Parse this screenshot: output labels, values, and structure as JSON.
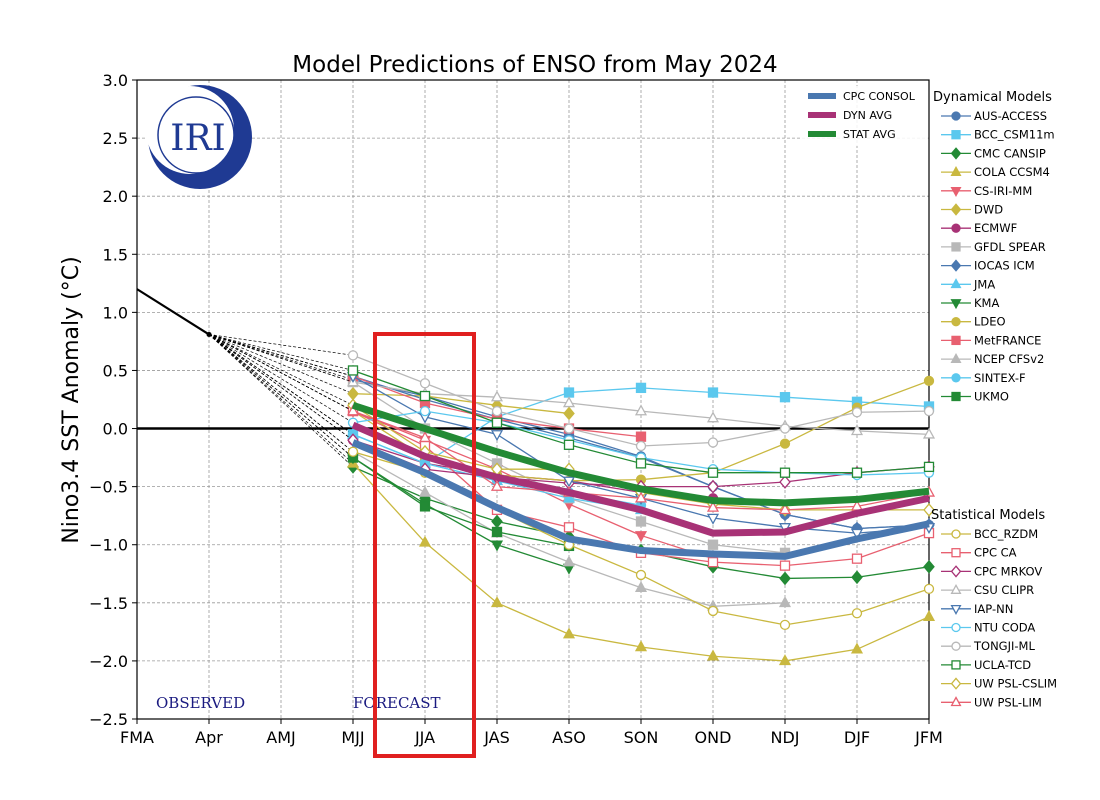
{
  "chart_data": {
    "type": "line",
    "title": "Model Predictions of ENSO from May 2024",
    "ylabel": "Nino3.4 SST Anomaly (°C)",
    "xlabel": "",
    "ylim": [
      -2.5,
      3.0
    ],
    "yticks": [
      "−2.5",
      "−2.0",
      "−1.5",
      "−1.0",
      "−0.5",
      "0.0",
      "0.5",
      "1.0",
      "1.5",
      "2.0",
      "2.5",
      "3.0"
    ],
    "categories": [
      "FMA",
      "Apr",
      "AMJ",
      "MJJ",
      "JJA",
      "JAS",
      "ASO",
      "SON",
      "OND",
      "NDJ",
      "DJF",
      "JFM"
    ],
    "grid": true,
    "annotations": {
      "observed": "OBSERVED",
      "forecast": "FORECAST",
      "logo": "IRI"
    },
    "highlight_box": {
      "category": "JJA",
      "color": "#e02020"
    },
    "observed": {
      "x": [
        "FMA",
        "Apr"
      ],
      "values": [
        1.2,
        0.81
      ]
    },
    "forecast_start": "MJJ",
    "averages_legend_position": "top-right",
    "averages": [
      {
        "name": "CPC CONSOL",
        "color": "#4a78b0",
        "values": [
          -0.12,
          -0.38,
          -0.68,
          -0.95,
          -1.05,
          -1.08,
          -1.1,
          -0.95,
          -0.82
        ]
      },
      {
        "name": "DYN AVG",
        "color": "#a83276",
        "values": [
          0.03,
          -0.24,
          -0.42,
          -0.55,
          -0.7,
          -0.9,
          -0.89,
          -0.73,
          -0.6
        ]
      },
      {
        "name": "STAT AVG",
        "color": "#238a35",
        "values": [
          0.2,
          0.0,
          -0.2,
          -0.38,
          -0.52,
          -0.62,
          -0.64,
          -0.61,
          -0.54
        ]
      }
    ],
    "dynamical_title": "Dynamical Models",
    "dynamical": [
      {
        "name": "AUS-ACCESS",
        "color": "#4a78b0",
        "marker": "circle",
        "filled": true,
        "values": [
          0.42,
          0.28,
          0.1,
          -0.05,
          -0.24,
          -0.5,
          -0.74,
          -0.86,
          -0.83
        ]
      },
      {
        "name": "BCC_CSM11m",
        "color": "#5bc8ee",
        "marker": "square",
        "filled": true,
        "values": [
          -0.05,
          -0.3,
          0.1,
          0.31,
          0.35,
          0.31,
          0.27,
          0.23,
          0.19
        ]
      },
      {
        "name": "CMC CANSIP",
        "color": "#238a35",
        "marker": "diamond",
        "filled": true,
        "values": [
          -0.33,
          -0.6,
          -0.8,
          -0.93,
          -1.05,
          -1.19,
          -1.29,
          -1.28,
          -1.19
        ]
      },
      {
        "name": "COLA CCSM4",
        "color": "#c9b840",
        "marker": "triangle-up",
        "filled": true,
        "values": [
          -0.3,
          -0.98,
          -1.5,
          -1.77,
          -1.88,
          -1.96,
          -2.0,
          -1.9,
          -1.62
        ]
      },
      {
        "name": "CS-IRI-MM",
        "color": "#e86070",
        "marker": "triangle-down",
        "filled": true,
        "values": [
          0.15,
          -0.1,
          -0.35,
          -0.65,
          -0.92,
          -1.12
        ]
      },
      {
        "name": "DWD",
        "color": "#c9b840",
        "marker": "diamond",
        "filled": true,
        "values": [
          0.3,
          0.28,
          0.2,
          0.13
        ]
      },
      {
        "name": "ECMWF",
        "color": "#a83276",
        "marker": "circle",
        "filled": true,
        "values": [
          -0.1,
          -0.3,
          -0.4,
          -0.45,
          -0.55,
          -0.6
        ]
      },
      {
        "name": "GFDL SPEAR",
        "color": "#b8b8b8",
        "marker": "square",
        "filled": true,
        "values": [
          0.4,
          0.0,
          -0.3,
          -0.6,
          -0.8,
          -1.0,
          -1.07
        ]
      },
      {
        "name": "IOCAS ICM",
        "color": "#4a78b0",
        "marker": "diamond",
        "filled": true,
        "values": [
          0.45,
          0.25,
          0.08,
          -0.08,
          -0.25,
          -0.5,
          -0.74,
          -0.86,
          -0.83
        ]
      },
      {
        "name": "JMA",
        "color": "#5bc8ee",
        "marker": "triangle-up",
        "filled": true,
        "values": [
          -0.05,
          -0.3,
          -0.45,
          -0.6,
          -0.7
        ]
      },
      {
        "name": "KMA",
        "color": "#238a35",
        "marker": "triangle-down",
        "filled": true,
        "values": [
          -0.25,
          -0.65,
          -1.0,
          -1.2
        ]
      },
      {
        "name": "LDEO",
        "color": "#c9b840",
        "marker": "circle",
        "filled": true,
        "values": [
          0.15,
          -0.25,
          -0.4,
          -0.45,
          -0.44,
          -0.38,
          -0.13,
          0.18,
          0.41
        ]
      },
      {
        "name": "MetFRANCE",
        "color": "#e86070",
        "marker": "square",
        "filled": true,
        "values": [
          0.45,
          0.22,
          0.08,
          0.0,
          -0.07
        ]
      },
      {
        "name": "NCEP CFSv2",
        "color": "#b8b8b8",
        "marker": "triangle-up",
        "filled": true,
        "values": [
          -0.2,
          -0.55,
          -0.9,
          -1.15,
          -1.37,
          -1.53,
          -1.5
        ]
      },
      {
        "name": "SINTEX-F",
        "color": "#5bc8ee",
        "marker": "circle",
        "filled": true,
        "values": [
          -0.05,
          -0.3,
          -0.45,
          -0.55,
          -0.66
        ]
      },
      {
        "name": "UKMO",
        "color": "#238a35",
        "marker": "square",
        "filled": true,
        "values": [
          -0.25,
          -0.67,
          -0.89,
          -1.01
        ]
      }
    ],
    "statistical_title": "Statistical Models",
    "statistical": [
      {
        "name": "BCC_RZDM",
        "color": "#c9b840",
        "marker": "circle",
        "filled": false,
        "values": [
          -0.2,
          -0.38,
          -0.7,
          -1.0,
          -1.26,
          -1.57,
          -1.69,
          -1.59,
          -1.38
        ]
      },
      {
        "name": "CPC CA",
        "color": "#e86070",
        "marker": "square",
        "filled": false,
        "values": [
          0.15,
          -0.15,
          -0.7,
          -0.85,
          -1.07,
          -1.15,
          -1.18,
          -1.12,
          -0.9
        ]
      },
      {
        "name": "CPC MRKOV",
        "color": "#a83276",
        "marker": "diamond",
        "filled": false,
        "values": [
          -0.1,
          -0.35,
          -0.42,
          -0.47,
          -0.5,
          -0.5,
          -0.46,
          -0.38,
          -0.33
        ]
      },
      {
        "name": "CSU CLIPR",
        "color": "#b8b8b8",
        "marker": "triangle-up",
        "filled": false,
        "values": [
          0.4,
          0.3,
          0.27,
          0.22,
          0.15,
          0.09,
          0.02,
          -0.02,
          -0.05
        ]
      },
      {
        "name": "IAP-NN",
        "color": "#4a78b0",
        "marker": "triangle-down",
        "filled": false,
        "values": [
          0.45,
          0.1,
          -0.05,
          -0.45,
          -0.6,
          -0.77,
          -0.85,
          -0.9,
          -0.85
        ]
      },
      {
        "name": "NTU CODA",
        "color": "#5bc8ee",
        "marker": "circle",
        "filled": false,
        "values": [
          0.05,
          0.15,
          0.05,
          -0.1,
          -0.25,
          -0.35,
          -0.38,
          -0.4,
          -0.38
        ]
      },
      {
        "name": "TONGJI-ML",
        "color": "#b8b8b8",
        "marker": "circle",
        "filled": false,
        "values": [
          0.63,
          0.39,
          0.15,
          0.0,
          -0.15,
          -0.12,
          0.0,
          0.14,
          0.15
        ]
      },
      {
        "name": "UCLA-TCD",
        "color": "#238a35",
        "marker": "square",
        "filled": false,
        "values": [
          0.5,
          0.28,
          0.05,
          -0.14,
          -0.3,
          -0.38,
          -0.38,
          -0.38,
          -0.33
        ]
      },
      {
        "name": "UW PSL-CSLIM",
        "color": "#c9b840",
        "marker": "diamond",
        "filled": false,
        "values": [
          0.2,
          -0.2,
          -0.35,
          -0.35,
          -0.55,
          -0.65,
          -0.7,
          -0.7,
          -0.7
        ]
      },
      {
        "name": "UW PSL-LIM",
        "color": "#e86070",
        "marker": "triangle-up",
        "filled": false,
        "values": [
          0.15,
          -0.08,
          -0.5,
          -0.55,
          -0.6,
          -0.68,
          -0.7,
          -0.67,
          -0.55
        ]
      }
    ]
  }
}
